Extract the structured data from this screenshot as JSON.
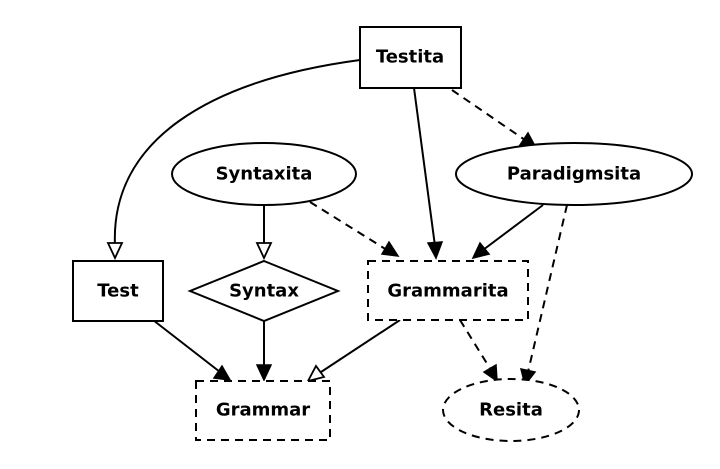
{
  "nodes": {
    "testita": {
      "label": "Testita",
      "shape": "box",
      "style": "solid"
    },
    "syntaxita": {
      "label": "Syntaxita",
      "shape": "ellipse",
      "style": "solid"
    },
    "paradigmsita": {
      "label": "Paradigmsita",
      "shape": "ellipse",
      "style": "solid"
    },
    "test": {
      "label": "Test",
      "shape": "box",
      "style": "solid"
    },
    "syntax": {
      "label": "Syntax",
      "shape": "diamond",
      "style": "solid"
    },
    "grammarita": {
      "label": "Grammarita",
      "shape": "box",
      "style": "dashed"
    },
    "grammar": {
      "label": "Grammar",
      "shape": "box",
      "style": "dashed"
    },
    "resita": {
      "label": "Resita",
      "shape": "ellipse",
      "style": "dashed"
    }
  },
  "edges": [
    {
      "from": "Testita",
      "to": "Test",
      "line": "solid",
      "arrowhead": "open"
    },
    {
      "from": "Testita",
      "to": "Grammarita",
      "line": "solid",
      "arrowhead": "filled"
    },
    {
      "from": "Testita",
      "to": "Paradigmsita",
      "line": "dashed",
      "arrowhead": "filled"
    },
    {
      "from": "Syntaxita",
      "to": "Syntax",
      "line": "solid",
      "arrowhead": "open"
    },
    {
      "from": "Syntaxita",
      "to": "Grammarita",
      "line": "dashed",
      "arrowhead": "filled"
    },
    {
      "from": "Paradigmsita",
      "to": "Grammarita",
      "line": "solid",
      "arrowhead": "filled"
    },
    {
      "from": "Paradigmsita",
      "to": "Resita",
      "line": "dashed",
      "arrowhead": "filled"
    },
    {
      "from": "Test",
      "to": "Grammar",
      "line": "solid",
      "arrowhead": "filled"
    },
    {
      "from": "Syntax",
      "to": "Grammar",
      "line": "solid",
      "arrowhead": "filled"
    },
    {
      "from": "Grammarita",
      "to": "Grammar",
      "line": "solid",
      "arrowhead": "open"
    },
    {
      "from": "Grammarita",
      "to": "Resita",
      "line": "dashed",
      "arrowhead": "filled"
    }
  ]
}
